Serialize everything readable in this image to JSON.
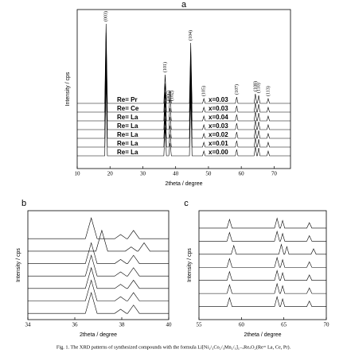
{
  "chart_data": [
    {
      "type": "line",
      "title": "a",
      "color": "#000000",
      "xlabel": "2theta / degree",
      "ylabel": "Intensity / cps",
      "xlim": [
        10,
        75
      ],
      "xticks": [
        10,
        20,
        30,
        40,
        50,
        60,
        70
      ],
      "ylim": [
        0,
        100
      ],
      "x": [
        10,
        18.4,
        18.8,
        19.2,
        36.4,
        36.8,
        37.2,
        37.9,
        38.3,
        38.7,
        44.2,
        44.6,
        45.0,
        48.2,
        48.6,
        49.0,
        58.2,
        58.6,
        59.0,
        63.9,
        64.3,
        64.7,
        64.9,
        65.3,
        65.7,
        67.8,
        68.2,
        68.6,
        75
      ],
      "annotations": [
        {
          "text": "(003)",
          "x": 18.8
        },
        {
          "text": "(101)",
          "x": 36.8
        },
        {
          "text": "(006)",
          "x": 37.9
        },
        {
          "text": "(102)",
          "x": 38.9
        },
        {
          "text": "(104)",
          "x": 44.6
        },
        {
          "text": "(105)",
          "x": 48.6
        },
        {
          "text": "(107)",
          "x": 58.6
        },
        {
          "text": "(108)",
          "x": 64.3
        },
        {
          "text": "(110)",
          "x": 65.3
        },
        {
          "text": "(113)",
          "x": 68.2
        }
      ],
      "series": [
        {
          "name": "Re= Pr",
          "composition": "x=0.03",
          "values": [
            41,
            41,
            91,
            41,
            41,
            59,
            41,
            41,
            49,
            41,
            41,
            79,
            41,
            41,
            44,
            41,
            41,
            45,
            41,
            41,
            47,
            41,
            41,
            46,
            41,
            41,
            44,
            41,
            41
          ]
        },
        {
          "name": "Re= Ce",
          "composition": "x=0.03",
          "values": [
            35.5,
            35.5,
            85.5,
            35.5,
            35.5,
            53.5,
            35.5,
            35.5,
            43.5,
            35.5,
            35.5,
            73.5,
            35.5,
            35.5,
            38.5,
            35.5,
            35.5,
            39.5,
            35.5,
            35.5,
            41.5,
            35.5,
            35.5,
            40.5,
            35.5,
            35.5,
            38.5,
            35.5,
            35.5
          ]
        },
        {
          "name": "Re= La",
          "composition": "x=0.04",
          "values": [
            30,
            30,
            80,
            30,
            30,
            48,
            30,
            30,
            38,
            30,
            30,
            68,
            30,
            30,
            33,
            30,
            30,
            34,
            30,
            30,
            36,
            30,
            30,
            35,
            30,
            30,
            33,
            30,
            30
          ]
        },
        {
          "name": "Re= La",
          "composition": "x=0.03",
          "values": [
            24.5,
            24.5,
            74.5,
            24.5,
            24.5,
            42.5,
            24.5,
            24.5,
            32.5,
            24.5,
            24.5,
            62.5,
            24.5,
            24.5,
            27.5,
            24.5,
            24.5,
            28.5,
            24.5,
            24.5,
            30.5,
            24.5,
            24.5,
            29.5,
            24.5,
            24.5,
            27.5,
            24.5,
            24.5
          ]
        },
        {
          "name": "Re= La",
          "composition": "x=0.02",
          "values": [
            19,
            19,
            69,
            19,
            19,
            37,
            19,
            19,
            27,
            19,
            19,
            57,
            19,
            19,
            22,
            19,
            19,
            23,
            19,
            19,
            25,
            19,
            19,
            24,
            19,
            19,
            22,
            19,
            19
          ]
        },
        {
          "name": "Re= La",
          "composition": "x=0.01",
          "values": [
            13.5,
            13.5,
            63.5,
            13.5,
            13.5,
            31.5,
            13.5,
            13.5,
            21.5,
            13.5,
            13.5,
            51.5,
            13.5,
            13.5,
            16.5,
            13.5,
            13.5,
            17.5,
            13.5,
            13.5,
            19.5,
            13.5,
            13.5,
            18.5,
            13.5,
            13.5,
            16.5,
            13.5,
            13.5
          ]
        },
        {
          "name": "Re= La",
          "composition": "x=0.00",
          "values": [
            8,
            8,
            58,
            8,
            8,
            26,
            8,
            8,
            16,
            8,
            8,
            46,
            8,
            8,
            11,
            8,
            8,
            12,
            8,
            8,
            14,
            8,
            8,
            13,
            8,
            8,
            11,
            8,
            8
          ]
        }
      ]
    },
    {
      "type": "line",
      "title": "b",
      "color": "#000000",
      "xlabel": "2theta / degree",
      "ylabel": "Intensity / cps",
      "xlim": [
        34,
        40
      ],
      "xticks": [
        34,
        36,
        38,
        40
      ],
      "ylim": [
        0,
        105
      ],
      "x": [
        34,
        36.45,
        36.7,
        36.95,
        37.7,
        37.95,
        38.2,
        38.25,
        38.5,
        38.75,
        40
      ],
      "series": [
        {
          "values": [
            78,
            78,
            98,
            78,
            78,
            82,
            78,
            78,
            86,
            78,
            78
          ]
        },
        {
          "x": [
            34,
            36.9,
            37.15,
            37.4,
            38.15,
            38.4,
            38.65,
            38.7,
            38.95,
            39.2,
            40
          ],
          "values": [
            66,
            66,
            86,
            66,
            66,
            70,
            66,
            66,
            74,
            66,
            66
          ]
        },
        {
          "values": [
            54,
            54,
            74,
            54,
            54,
            58,
            54,
            54,
            62,
            54,
            54
          ]
        },
        {
          "values": [
            42,
            42,
            62,
            42,
            42,
            46,
            42,
            42,
            50,
            42,
            42
          ]
        },
        {
          "values": [
            30,
            30,
            50,
            30,
            30,
            34,
            30,
            30,
            38,
            30,
            30
          ]
        },
        {
          "values": [
            18,
            18,
            38,
            18,
            18,
            22,
            18,
            18,
            26,
            18,
            18
          ]
        },
        {
          "values": [
            6,
            6,
            26,
            6,
            6,
            10,
            6,
            6,
            14,
            6,
            6
          ]
        }
      ]
    },
    {
      "type": "line",
      "title": "c",
      "color": "#000000",
      "xlabel": "2theta / degree",
      "ylabel": "Intensity / cps",
      "xlim": [
        55,
        70
      ],
      "xticks": [
        55,
        60,
        65,
        70
      ],
      "ylim": [
        0,
        100
      ],
      "x": [
        55,
        58.3,
        58.6,
        58.9,
        63.9,
        64.2,
        64.5,
        64.6,
        64.85,
        65.1,
        67.7,
        68.0,
        68.3,
        70
      ],
      "series": [
        {
          "values": [
            84,
            84,
            92,
            84,
            84,
            93,
            84,
            84,
            91,
            84,
            84,
            89,
            84,
            84
          ]
        },
        {
          "values": [
            72,
            72,
            80,
            72,
            72,
            81,
            72,
            72,
            79,
            72,
            72,
            77,
            72,
            72
          ]
        },
        {
          "x": [
            55,
            58.8,
            59.1,
            59.4,
            64.4,
            64.7,
            65.0,
            65.1,
            65.35,
            65.6,
            68.2,
            68.5,
            68.8,
            70
          ],
          "values": [
            60,
            60,
            68,
            60,
            60,
            69,
            60,
            60,
            67,
            60,
            60,
            65,
            60,
            60
          ]
        },
        {
          "values": [
            48,
            48,
            56,
            48,
            48,
            57,
            48,
            48,
            55,
            48,
            48,
            53,
            48,
            48
          ]
        },
        {
          "values": [
            36,
            36,
            44,
            36,
            36,
            45,
            36,
            36,
            43,
            36,
            36,
            41,
            36,
            36
          ]
        },
        {
          "values": [
            24,
            24,
            32,
            24,
            24,
            33,
            24,
            24,
            31,
            24,
            24,
            29,
            24,
            24
          ]
        },
        {
          "values": [
            12,
            12,
            20,
            12,
            12,
            21,
            12,
            12,
            19,
            12,
            12,
            17,
            12,
            12
          ]
        }
      ]
    }
  ],
  "caption": "Fig. 1. The XRD patterns of synthesized compounds with the formula Li[Ni₁/₃Co₁/₃Mn₁/₃]₁₋ₓReₓO₂(Re= La, Ce, Pr)."
}
